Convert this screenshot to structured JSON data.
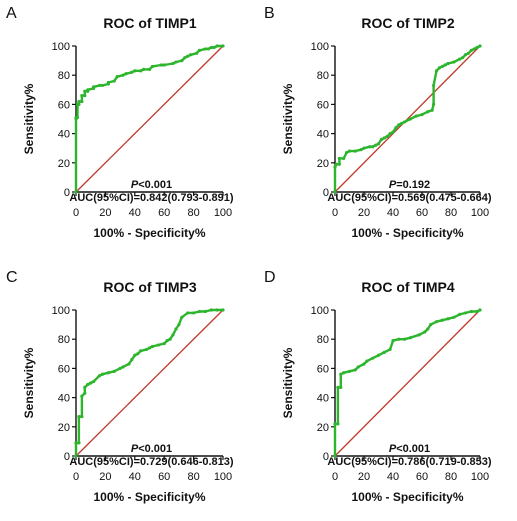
{
  "colors": {
    "roc": "#2db52d",
    "diagonal": "#c0392b",
    "axis": "#111111"
  },
  "chart_data": [
    {
      "type": "line",
      "panel_label": "A",
      "title": "ROC of TIMP1",
      "xlabel": "100% - Specificity%",
      "ylabel": "Sensitivity%",
      "xlim": [
        0,
        100
      ],
      "ylim": [
        0,
        100
      ],
      "xticks": [
        0,
        20,
        40,
        60,
        80,
        100
      ],
      "yticks": [
        0,
        20,
        40,
        60,
        80,
        100
      ],
      "grid": false,
      "p_prefix": "P",
      "p_value": "<0.001",
      "auc_text": "AUC(95%CI)=0.842(0.793-0.891)",
      "series": [
        {
          "kind": "roc",
          "x": [
            0,
            0,
            0,
            1,
            1,
            2,
            2,
            4,
            4,
            6,
            6,
            8,
            8,
            12,
            12,
            16,
            18,
            22,
            22,
            26,
            28,
            32,
            34,
            38,
            40,
            44,
            46,
            50,
            52,
            58,
            60,
            66,
            68,
            72,
            74,
            76,
            78,
            82,
            84,
            88,
            90,
            92,
            94,
            96,
            100
          ],
          "y": [
            0,
            50,
            51,
            51,
            60,
            60,
            62,
            62,
            66,
            66,
            69,
            69,
            70,
            71,
            72,
            73,
            73,
            74,
            75,
            76,
            79,
            80,
            81,
            82,
            83,
            83,
            84,
            84,
            86,
            87,
            87,
            88,
            89,
            90,
            92,
            93,
            94,
            95,
            97,
            98,
            98,
            99,
            99,
            100,
            100
          ]
        }
      ]
    },
    {
      "type": "line",
      "panel_label": "B",
      "title": "ROC of TIMP2",
      "xlabel": "100% - Specificity%",
      "ylabel": "Sensitivity%",
      "xlim": [
        0,
        100
      ],
      "ylim": [
        0,
        100
      ],
      "xticks": [
        0,
        20,
        40,
        60,
        80,
        100
      ],
      "yticks": [
        0,
        20,
        40,
        60,
        80,
        100
      ],
      "grid": false,
      "p_prefix": "P",
      "p_value": "=0.192",
      "auc_text": "AUC(95%CI)=0.569(0.475-0.664)",
      "series": [
        {
          "kind": "roc",
          "x": [
            0,
            0,
            1,
            3,
            3,
            6,
            8,
            10,
            14,
            18,
            20,
            24,
            26,
            28,
            30,
            32,
            34,
            36,
            38,
            40,
            42,
            44,
            46,
            48,
            52,
            56,
            60,
            64,
            67,
            68,
            68,
            70,
            72,
            74,
            76,
            78,
            82,
            86,
            88,
            90,
            92,
            94,
            96,
            98,
            100
          ],
          "y": [
            0,
            17,
            19,
            19,
            23,
            23,
            27,
            28,
            28,
            29,
            30,
            31,
            31,
            32,
            33,
            36,
            37,
            38,
            40,
            41,
            44,
            46,
            47,
            48,
            50,
            52,
            53,
            55,
            56,
            60,
            73,
            83,
            85,
            86,
            87,
            88,
            89,
            91,
            92,
            94,
            95,
            97,
            98,
            99,
            100
          ]
        }
      ]
    },
    {
      "type": "line",
      "panel_label": "C",
      "title": "ROC of TIMP3",
      "xlabel": "100% - Specificity%",
      "ylabel": "Sensitivity%",
      "xlim": [
        0,
        100
      ],
      "ylim": [
        0,
        100
      ],
      "xticks": [
        0,
        20,
        40,
        60,
        80,
        100
      ],
      "yticks": [
        0,
        20,
        40,
        60,
        80,
        100
      ],
      "grid": false,
      "p_prefix": "P",
      "p_value": "<0.001",
      "auc_text": "AUC(95%CI)=0.729(0.646-0.813)",
      "series": [
        {
          "kind": "roc",
          "x": [
            0,
            0,
            2,
            2,
            4,
            4,
            6,
            6,
            8,
            10,
            12,
            16,
            18,
            22,
            26,
            30,
            32,
            36,
            38,
            40,
            42,
            44,
            48,
            50,
            52,
            56,
            60,
            62,
            64,
            66,
            68,
            70,
            72,
            76,
            80,
            84,
            88,
            92,
            96,
            100
          ],
          "y": [
            0,
            9,
            9,
            27,
            27,
            41,
            43,
            47,
            49,
            50,
            51,
            55,
            56,
            57,
            58,
            60,
            61,
            63,
            66,
            69,
            70,
            72,
            73,
            74,
            75,
            76,
            77,
            79,
            80,
            83,
            87,
            90,
            95,
            98,
            98,
            99,
            99,
            100,
            100,
            100
          ]
        }
      ]
    },
    {
      "type": "line",
      "panel_label": "D",
      "title": "ROC of TIMP4",
      "xlabel": "100% - Specificity%",
      "ylabel": "Sensitivity%",
      "xlim": [
        0,
        100
      ],
      "ylim": [
        0,
        100
      ],
      "xticks": [
        0,
        20,
        40,
        60,
        80,
        100
      ],
      "yticks": [
        0,
        20,
        40,
        60,
        80,
        100
      ],
      "grid": false,
      "p_prefix": "P",
      "p_value": "<0.001",
      "auc_text": "AUC(95%CI)=0.786(0.719-0.853)",
      "series": [
        {
          "kind": "roc",
          "x": [
            0,
            0,
            2,
            2,
            4,
            4,
            6,
            10,
            14,
            16,
            20,
            22,
            26,
            30,
            34,
            38,
            40,
            44,
            48,
            52,
            58,
            62,
            64,
            66,
            70,
            74,
            78,
            82,
            86,
            90,
            94,
            98,
            100
          ],
          "y": [
            0,
            22,
            22,
            47,
            47,
            56,
            57,
            58,
            59,
            61,
            63,
            65,
            67,
            69,
            71,
            73,
            79,
            80,
            80,
            81,
            83,
            85,
            87,
            90,
            92,
            93,
            94,
            95,
            97,
            98,
            99,
            99,
            100
          ]
        }
      ]
    }
  ]
}
